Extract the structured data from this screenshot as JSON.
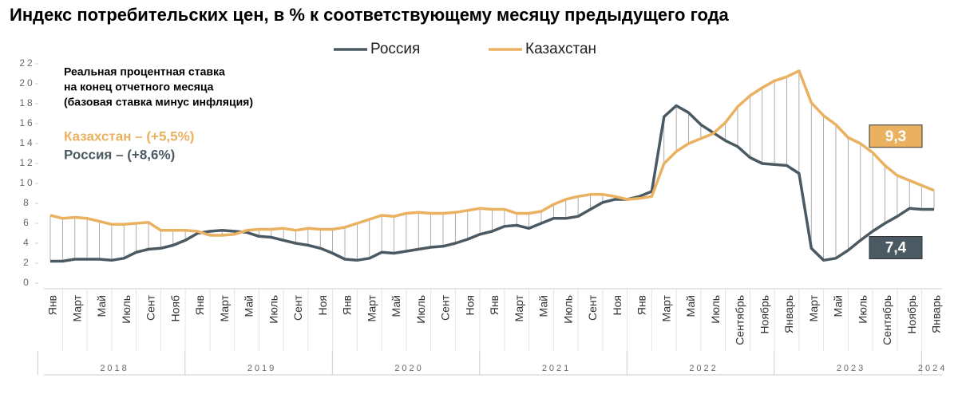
{
  "chart_data": {
    "type": "line",
    "title": "Индекс потребительских цен, в % к соответствующему месяцу предыдущего года",
    "categories": [
      "Янв",
      null,
      "Март",
      null,
      "Май",
      null,
      "Июль",
      null,
      "Сент",
      null,
      "Нояб",
      null,
      "Янв",
      null,
      "Март",
      null,
      "Май",
      null,
      "Июль",
      null,
      "Сент",
      null,
      "Ноя",
      null,
      "Янв",
      null,
      "Март",
      null,
      "Май",
      null,
      "Июль",
      null,
      "Сент",
      null,
      "Ноя",
      null,
      "Янв",
      null,
      "Март",
      null,
      "Май",
      null,
      "Июль",
      null,
      "Сент",
      null,
      "Ноя",
      null,
      "Янв",
      null,
      "Март",
      null,
      "Май",
      null,
      "Июль",
      null,
      "Сентябрь",
      null,
      "Ноябрь",
      null,
      "Январь",
      null,
      "Март",
      null,
      "Май",
      null,
      "Июль",
      null,
      "Сентябрь",
      null,
      "Ноябрь",
      null,
      "Январь"
    ],
    "years": [
      "2018",
      "2019",
      "2020",
      "2021",
      "2022",
      "2023",
      "2024"
    ],
    "series": [
      {
        "name": "Россия",
        "color": "#4b5a62",
        "values": [
          2.2,
          2.2,
          2.4,
          2.4,
          2.4,
          2.3,
          2.5,
          3.1,
          3.4,
          3.5,
          3.8,
          4.3,
          5.0,
          5.2,
          5.3,
          5.2,
          5.1,
          4.7,
          4.6,
          4.3,
          4.0,
          3.8,
          3.5,
          3.0,
          2.4,
          2.3,
          2.5,
          3.1,
          3.0,
          3.2,
          3.4,
          3.6,
          3.7,
          4.0,
          4.4,
          4.9,
          5.2,
          5.7,
          5.8,
          5.5,
          6.0,
          6.5,
          6.5,
          6.7,
          7.4,
          8.1,
          8.4,
          8.4,
          8.7,
          9.2,
          16.7,
          17.8,
          17.1,
          15.9,
          15.1,
          14.3,
          13.7,
          12.6,
          12.0,
          11.9,
          11.8,
          11.0,
          3.5,
          2.3,
          2.5,
          3.3,
          4.3,
          5.2,
          6.0,
          6.7,
          7.5,
          7.4,
          7.4
        ],
        "value_labels": [
          null,
          null,
          null,
          null,
          null,
          null,
          null,
          null,
          null,
          null,
          null,
          null,
          null,
          null,
          null,
          null,
          null,
          null,
          null,
          null,
          null,
          null,
          null,
          null,
          null,
          null,
          null,
          null,
          null,
          null,
          null,
          null,
          null,
          null,
          null,
          null,
          null,
          null,
          null,
          null,
          null,
          null,
          null,
          null,
          null,
          null,
          null,
          null,
          null,
          null,
          null,
          null,
          null,
          null,
          null,
          null,
          null,
          null,
          null,
          null,
          null,
          null,
          null,
          null,
          null,
          null,
          null,
          null,
          null,
          null,
          null,
          null,
          "7,4"
        ]
      },
      {
        "name": "Казахстан",
        "color": "#e9b160",
        "values": [
          6.8,
          6.5,
          6.6,
          6.5,
          6.2,
          5.9,
          5.9,
          6.0,
          6.1,
          5.3,
          5.3,
          5.3,
          5.2,
          4.8,
          4.8,
          4.9,
          5.3,
          5.4,
          5.4,
          5.5,
          5.3,
          5.5,
          5.4,
          5.4,
          5.6,
          6.0,
          6.4,
          6.8,
          6.7,
          7.0,
          7.1,
          7.0,
          7.0,
          7.1,
          7.3,
          7.5,
          7.4,
          7.4,
          7.0,
          7.0,
          7.2,
          7.9,
          8.4,
          8.7,
          8.9,
          8.9,
          8.7,
          8.4,
          8.5,
          8.7,
          12.0,
          13.2,
          14.0,
          14.5,
          15.0,
          16.1,
          17.7,
          18.8,
          19.6,
          20.3,
          20.7,
          21.3,
          18.1,
          16.8,
          15.9,
          14.6,
          14.0,
          13.1,
          11.8,
          10.8,
          10.3,
          9.8,
          9.3
        ],
        "value_labels": [
          null,
          null,
          null,
          null,
          null,
          null,
          null,
          null,
          null,
          null,
          null,
          null,
          null,
          null,
          null,
          null,
          null,
          null,
          null,
          null,
          null,
          null,
          null,
          null,
          null,
          null,
          null,
          null,
          null,
          null,
          null,
          null,
          null,
          null,
          null,
          null,
          null,
          null,
          null,
          null,
          null,
          null,
          null,
          null,
          null,
          null,
          null,
          null,
          null,
          null,
          null,
          null,
          null,
          null,
          null,
          null,
          null,
          null,
          null,
          null,
          null,
          null,
          null,
          null,
          null,
          null,
          null,
          null,
          null,
          null,
          null,
          null,
          "9,3"
        ]
      }
    ],
    "note": {
      "lines": [
        "Реальная процентная ставка",
        "на конец отчетного месяца",
        "(базовая ставка минус инфляция)"
      ],
      "kazakhstan": "Казахстан – (+5,5%)",
      "russia": "Россия – (+8,6%)"
    },
    "ylim": [
      0,
      22
    ],
    "yticks": [
      0,
      2,
      4,
      6,
      8,
      10,
      12,
      14,
      16,
      18,
      20,
      22
    ],
    "legend": "top"
  }
}
